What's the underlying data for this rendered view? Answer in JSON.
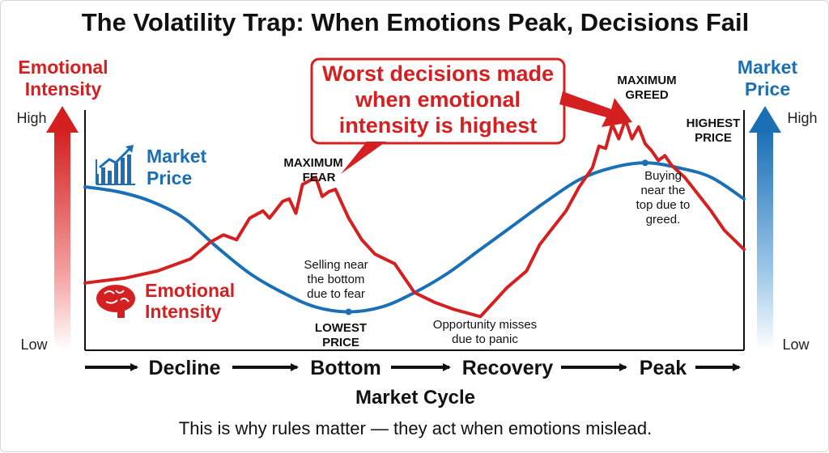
{
  "title": "The Volatility Trap: When Emotions Peak, Decisions Fail",
  "left_axis": {
    "label_line1": "Emotional",
    "label_line2": "Intensity",
    "high": "High",
    "low": "Low"
  },
  "right_axis": {
    "label_line1": "Market",
    "label_line2": "Price",
    "high": "High",
    "low": "Low"
  },
  "colors": {
    "emotion": "#d42020",
    "price": "#1a6fb5",
    "dark": "#111111"
  },
  "legend": {
    "price_line1": "Market",
    "price_line2": "Price",
    "emotion_line1": "Emotional",
    "emotion_line2": "Intensity"
  },
  "callout": {
    "line1": "Worst decisions made",
    "line2": "when emotional",
    "line3": "intensity is highest"
  },
  "annotations": {
    "max_fear_1": "MAXIMUM",
    "max_fear_2": "FEAR",
    "max_greed_1": "MAXIMUM",
    "max_greed_2": "GREED",
    "highest_1": "HIGHEST",
    "highest_2": "PRICE",
    "lowest_1": "LOWEST",
    "lowest_2": "PRICE",
    "selling_1": "Selling near",
    "selling_2": "the bottom",
    "selling_3": "due to fear",
    "opportunity_1": "Opportunity misses",
    "opportunity_2": "due to panic",
    "buying_1": "Buying",
    "buying_2": "near the",
    "buying_3": "top due to",
    "buying_4": "greed."
  },
  "phases": [
    "Decline",
    "Bottom",
    "Recovery",
    "Peak"
  ],
  "x_axis_label": "Market Cycle",
  "footer": "This is why rules matter — they act when emotions mislead.",
  "chart_data": {
    "type": "line",
    "title": "The Volatility Trap: When Emotions Peak, Decisions Fail",
    "xlabel": "Market Cycle",
    "ylabel_left": "Emotional Intensity",
    "ylabel_right": "Market Price",
    "xlim": [
      0,
      100
    ],
    "ylim": [
      0,
      100
    ],
    "categories": [
      "Decline",
      "Bottom",
      "Recovery",
      "Peak"
    ],
    "series": [
      {
        "name": "Market Price",
        "x": [
          0,
          5,
          10,
          15,
          20,
          25,
          30,
          35,
          40,
          45,
          50,
          55,
          60,
          65,
          70,
          75,
          80,
          85,
          90,
          95,
          100
        ],
        "y": [
          68,
          66,
          62,
          55,
          43,
          32,
          24,
          18,
          16,
          18,
          24,
          32,
          42,
          52,
          62,
          71,
          76,
          78,
          76,
          72,
          63
        ]
      },
      {
        "name": "Emotional Intensity",
        "x": [
          0,
          6,
          11,
          16,
          19,
          21,
          23,
          25,
          27,
          28,
          30,
          31,
          32,
          33,
          35,
          36,
          37,
          38,
          40,
          42,
          44,
          47,
          50,
          53,
          56,
          60,
          62,
          64,
          67,
          69,
          71,
          73,
          75,
          77,
          78,
          79,
          80,
          81,
          82,
          83,
          84,
          85,
          86,
          87,
          88,
          89,
          91,
          93,
          95,
          97,
          100
        ],
        "y": [
          28,
          30,
          33,
          38,
          45,
          48,
          46,
          55,
          58,
          55,
          62,
          63,
          57,
          69,
          72,
          64,
          66,
          67,
          55,
          46,
          40,
          36,
          24,
          20,
          17,
          14,
          20,
          26,
          33,
          44,
          51,
          58,
          68,
          76,
          85,
          84,
          94,
          88,
          96,
          88,
          93,
          86,
          83,
          79,
          81,
          77,
          72,
          65,
          58,
          50,
          42
        ]
      }
    ],
    "points": [
      {
        "label": "MAXIMUM FEAR",
        "series": "Emotional Intensity",
        "x": 35,
        "y": 72
      },
      {
        "label": "MAXIMUM GREED",
        "series": "Emotional Intensity",
        "x": 82,
        "y": 96
      },
      {
        "label": "LOWEST PRICE",
        "series": "Market Price",
        "x": 40,
        "y": 16
      },
      {
        "label": "HIGHEST PRICE",
        "series": "Market Price",
        "x": 85,
        "y": 78
      }
    ]
  }
}
